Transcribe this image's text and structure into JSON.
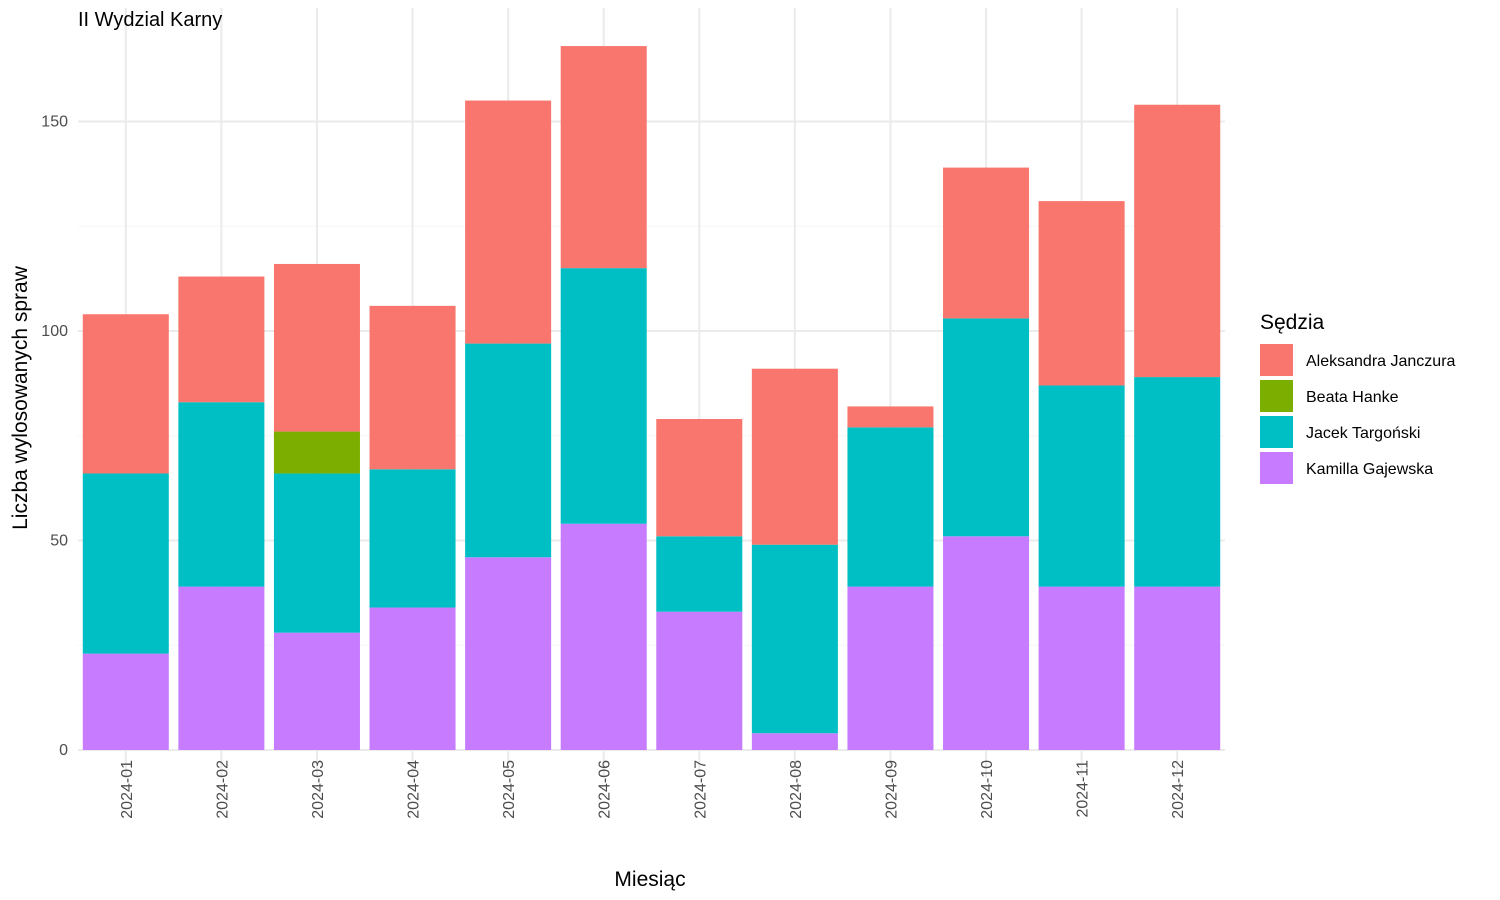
{
  "chart_data": {
    "type": "bar",
    "stacked": true,
    "title": "II Wydzial Karny",
    "xlabel": "Miesiąc",
    "ylabel": "Liczba wylosowanych spraw",
    "ylim": [
      0,
      170
    ],
    "yticks": [
      0,
      50,
      100,
      150
    ],
    "grid": true,
    "legend_position": "right",
    "legend_title": "Sędzia",
    "categories": [
      "2024-01",
      "2024-02",
      "2024-03",
      "2024-04",
      "2024-05",
      "2024-06",
      "2024-07",
      "2024-08",
      "2024-09",
      "2024-10",
      "2024-11",
      "2024-12"
    ],
    "series": [
      {
        "name": "Kamilla Gajewska",
        "color": "#C77CFF",
        "values": [
          23,
          39,
          28,
          34,
          46,
          54,
          33,
          4,
          39,
          51,
          39,
          39
        ]
      },
      {
        "name": "Jacek Targoński",
        "color": "#00BFC4",
        "values": [
          43,
          44,
          38,
          33,
          51,
          61,
          18,
          45,
          38,
          52,
          48,
          50
        ]
      },
      {
        "name": "Beata Hanke",
        "color": "#7CAE00",
        "values": [
          0,
          0,
          10,
          0,
          0,
          0,
          0,
          0,
          0,
          0,
          0,
          0
        ]
      },
      {
        "name": "Aleksandra Janczura",
        "color": "#F8766D",
        "values": [
          38,
          30,
          40,
          39,
          58,
          53,
          28,
          42,
          5,
          36,
          44,
          65
        ]
      }
    ],
    "legend_order": [
      "Aleksandra Janczura",
      "Beata Hanke",
      "Jacek Targoński",
      "Kamilla Gajewska"
    ]
  }
}
